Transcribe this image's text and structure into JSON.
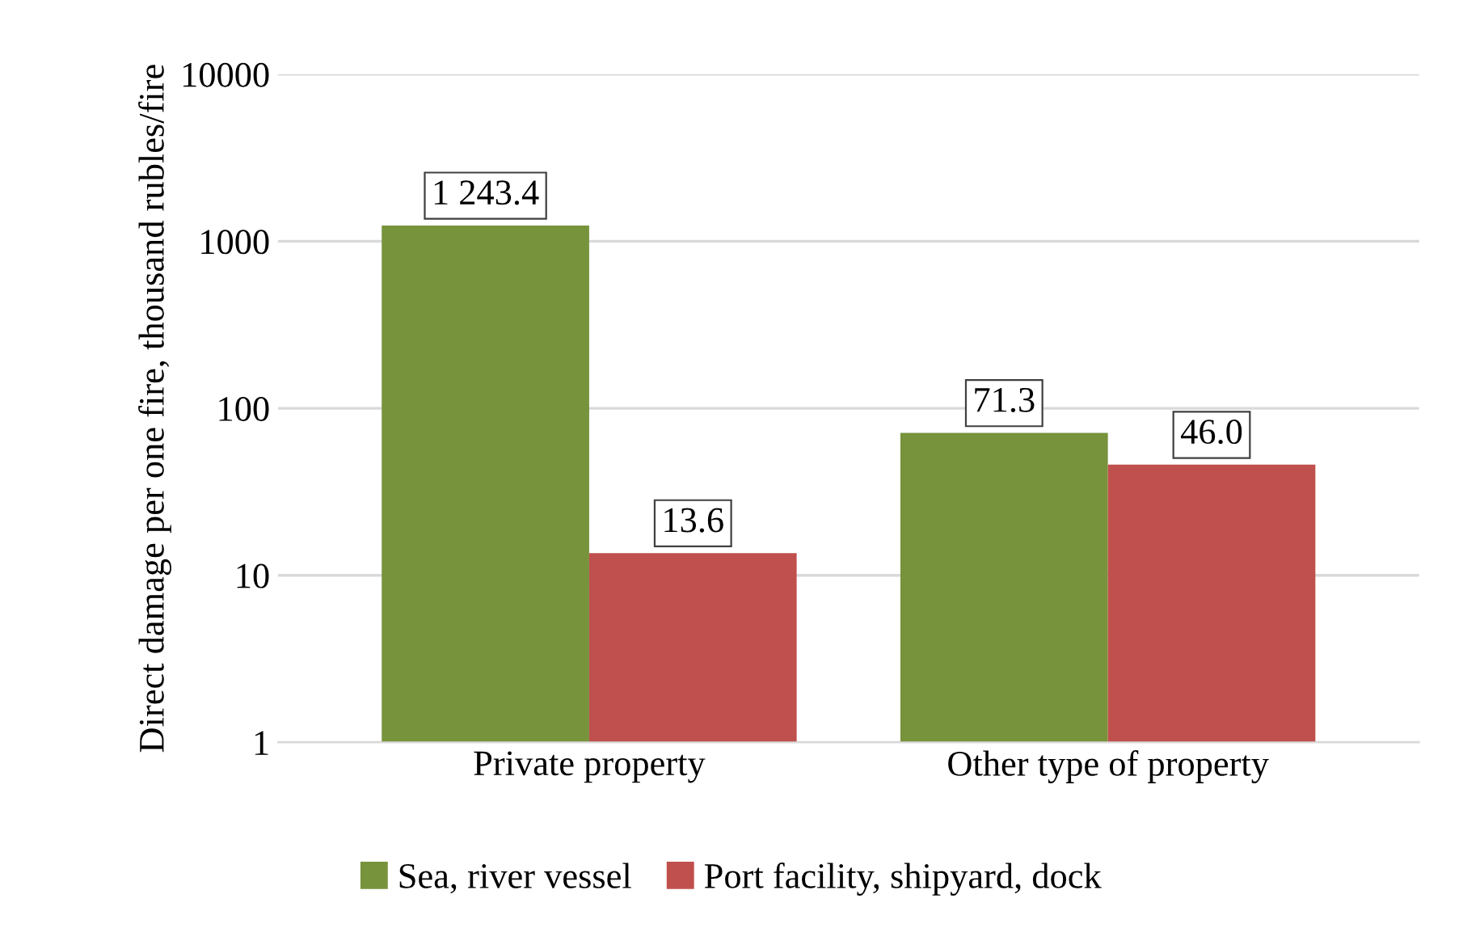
{
  "chart_data": {
    "type": "bar",
    "ylabel": "Direct damage per one fire, thousand rubles/fire",
    "categories": [
      "Private property",
      "Other type of property"
    ],
    "series": [
      {
        "name": "Sea, river vessel",
        "color": "#77933c",
        "values": [
          1243.4,
          71.3
        ],
        "value_labels": [
          "1 243.4",
          "71.3"
        ]
      },
      {
        "name": "Port facility, shipyard, dock",
        "color": "#c0504d",
        "values": [
          13.6,
          46.0
        ],
        "value_labels": [
          "13.6",
          "46.0"
        ]
      }
    ],
    "log": "y",
    "ylim": [
      1,
      10000
    ],
    "yticks": [
      1,
      10,
      100,
      1000,
      10000
    ],
    "grid": "y",
    "legend": "bottom"
  }
}
